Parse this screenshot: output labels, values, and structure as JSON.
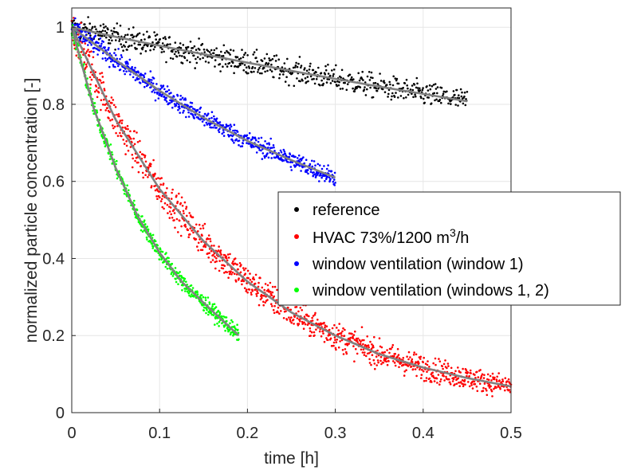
{
  "chart_data": {
    "type": "scatter",
    "xlabel": "time [h]",
    "ylabel": "normalized particle concentration [-]",
    "xlim": [
      0,
      0.5
    ],
    "ylim": [
      0,
      1.05
    ],
    "xticks": [
      0,
      0.1,
      0.2,
      0.3,
      0.4,
      0.5
    ],
    "xtick_labels": [
      "0",
      "0.1",
      "0.2",
      "0.3",
      "0.4",
      "0.5"
    ],
    "yticks": [
      0,
      0.2,
      0.4,
      0.6,
      0.8,
      1
    ],
    "ytick_labels": [
      "0",
      "0.2",
      "0.4",
      "0.6",
      "0.8",
      "1"
    ],
    "grid": true,
    "legend_position": "center-right",
    "fit_line_color": "#808080",
    "series": [
      {
        "name": "reference",
        "color": "#000000",
        "x_max": 0.45,
        "n": 700,
        "noise": 0.022,
        "fit": {
          "x": [
            0,
            0.05,
            0.1,
            0.15,
            0.2,
            0.25,
            0.3,
            0.35,
            0.4,
            0.45
          ],
          "y": [
            1.0,
            0.975,
            0.952,
            0.93,
            0.908,
            0.887,
            0.866,
            0.846,
            0.827,
            0.808
          ]
        }
      },
      {
        "name": "HVAC 73%/1200 m³/h",
        "color": "#ff0000",
        "x_max": 0.5,
        "n": 1150,
        "noise": 0.035,
        "fit": {
          "x": [
            0,
            0.05,
            0.1,
            0.15,
            0.2,
            0.25,
            0.3,
            0.35,
            0.4,
            0.45,
            0.5
          ],
          "y": [
            1.0,
            0.76,
            0.58,
            0.445,
            0.34,
            0.26,
            0.2,
            0.152,
            0.117,
            0.09,
            0.068
          ]
        }
      },
      {
        "name": "window ventilation (window 1)",
        "color": "#0000ff",
        "x_max": 0.3,
        "n": 700,
        "noise": 0.017,
        "fit": {
          "x": [
            0,
            0.05,
            0.1,
            0.15,
            0.2,
            0.25,
            0.3
          ],
          "y": [
            1.0,
            0.915,
            0.835,
            0.765,
            0.705,
            0.655,
            0.61
          ]
        }
      },
      {
        "name": "window ventilation (windows 1, 2)",
        "color": "#00ff00",
        "x_max": 0.19,
        "n": 600,
        "noise": 0.014,
        "fit": {
          "x": [
            0,
            0.025,
            0.05,
            0.075,
            0.1,
            0.125,
            0.15,
            0.19
          ],
          "y": [
            1.0,
            0.79,
            0.635,
            0.51,
            0.415,
            0.34,
            0.285,
            0.2
          ]
        }
      }
    ]
  }
}
